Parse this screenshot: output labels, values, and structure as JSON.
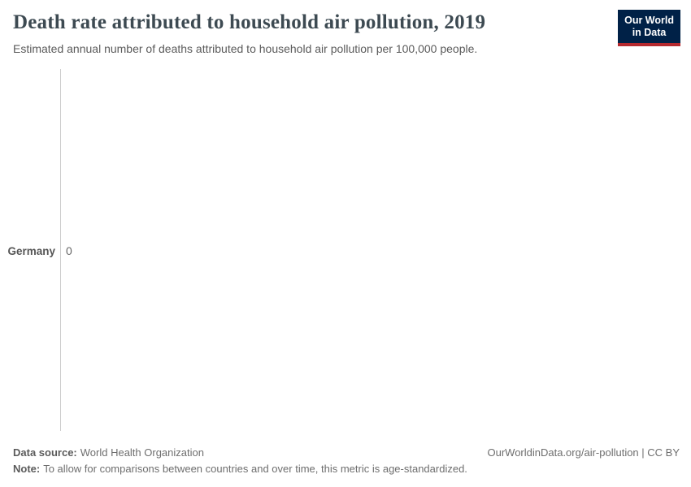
{
  "header": {
    "title": "Death rate attributed to household air pollution, 2019",
    "subtitle": "Estimated annual number of deaths attributed to household air pollution per 100,000 people."
  },
  "logo": {
    "line1": "Our World",
    "line2": "in Data"
  },
  "chart_data": {
    "type": "bar",
    "orientation": "horizontal",
    "title": "Death rate attributed to household air pollution, 2019",
    "subtitle": "Estimated annual number of deaths attributed to household air pollution per 100,000 people.",
    "year": "2019",
    "categories": [
      "Germany"
    ],
    "values": [
      0
    ],
    "value_labels": [
      "0"
    ],
    "xlabel": "",
    "ylabel": "",
    "xlim": [
      0,
      1
    ],
    "grid": false,
    "legend": "none"
  },
  "footer": {
    "data_source_label": "Data source:",
    "data_source_text": "World Health Organization",
    "note_label": "Note:",
    "note_text": "To allow for comparisons between countries and over time, this metric is age-standardized.",
    "link": "OurWorldinData.org/air-pollution | CC BY"
  },
  "colors": {
    "logo_background": "#002147",
    "logo_accent": "#b5292f",
    "title_text": "#3d4a52",
    "subtitle_text": "#5b5b5b",
    "axis_line": "#cccccc",
    "entity_label": "#555555",
    "value_label": "#666666",
    "footer_text": "#6e6e6e"
  }
}
